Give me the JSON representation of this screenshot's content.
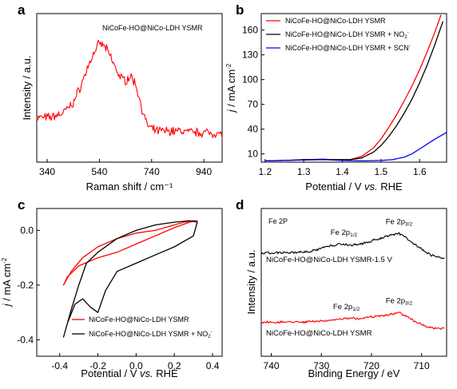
{
  "chart_data": [
    {
      "type": "line",
      "panel_label": "a",
      "annotation": "NiCoFe-HO@NiCo-LDH YSMR",
      "xlabel": "Raman shift / cm⁻¹",
      "ylabel": "Intensity / a.u.",
      "xlim": [
        300,
        1010
      ],
      "xticks": [
        "340",
        "540",
        "740",
        "940"
      ],
      "xtick_values": [
        340,
        540,
        740,
        940
      ],
      "color": "#ff0000",
      "noisy": true,
      "series": [
        {
          "x": [
            300,
            350,
            400,
            440,
            470,
            500,
            520,
            540,
            560,
            580,
            600,
            620,
            640,
            660,
            680,
            700,
            720,
            740,
            760,
            800,
            850,
            900,
            950,
            1010
          ],
          "y": [
            0.3,
            0.3,
            0.33,
            0.4,
            0.52,
            0.66,
            0.74,
            0.8,
            0.78,
            0.72,
            0.64,
            0.57,
            0.55,
            0.58,
            0.52,
            0.38,
            0.26,
            0.22,
            0.21,
            0.21,
            0.21,
            0.2,
            0.2,
            0.19
          ]
        }
      ]
    },
    {
      "type": "line",
      "panel_label": "b",
      "xlabel": "Potential / V vs. RHE",
      "ylabel": "j / mA cm⁻²",
      "xlim": [
        1.19,
        1.67
      ],
      "ylim": [
        0,
        180
      ],
      "xticks": [
        "1.2",
        "1.3",
        "1.4",
        "1.5",
        "1.6"
      ],
      "xtick_values": [
        1.2,
        1.3,
        1.4,
        1.5,
        1.6
      ],
      "yticks": [
        "10",
        "40",
        "70",
        "100",
        "130",
        "160"
      ],
      "ytick_values": [
        10,
        40,
        70,
        100,
        130,
        160
      ],
      "legend_placement": "top-left",
      "series": [
        {
          "name": "NiCoFe-HO@NiCo-LDH YSMR",
          "color": "#ff0000",
          "x": [
            1.2,
            1.25,
            1.3,
            1.35,
            1.38,
            1.42,
            1.45,
            1.48,
            1.5,
            1.52,
            1.54,
            1.56,
            1.58,
            1.6,
            1.62,
            1.64,
            1.655
          ],
          "y": [
            1.5,
            2,
            3,
            3.5,
            3,
            3,
            7,
            17,
            28,
            42,
            57,
            74,
            92,
            112,
            134,
            158,
            178
          ]
        },
        {
          "name": "NiCoFe-HO@NiCo-LDH YSMR + NO₂⁻",
          "color": "#000000",
          "x": [
            1.2,
            1.25,
            1.3,
            1.35,
            1.38,
            1.42,
            1.45,
            1.48,
            1.5,
            1.52,
            1.54,
            1.56,
            1.58,
            1.6,
            1.62,
            1.64,
            1.66
          ],
          "y": [
            1.5,
            2,
            3,
            3.5,
            3,
            3,
            5,
            12,
            20,
            31,
            44,
            59,
            76,
            96,
            118,
            143,
            170
          ]
        },
        {
          "name": "NiCoFe-HO@NiCo-LDH YSMR + SCN⁻",
          "color": "#0000ff",
          "x": [
            1.2,
            1.25,
            1.3,
            1.35,
            1.4,
            1.45,
            1.5,
            1.53,
            1.56,
            1.58,
            1.6,
            1.62,
            1.64,
            1.67
          ],
          "y": [
            1.5,
            2,
            2.5,
            3,
            2,
            1.5,
            2,
            3,
            6,
            10,
            16,
            22,
            28,
            36
          ]
        }
      ]
    },
    {
      "type": "line",
      "panel_label": "c",
      "xlabel": "Potential / V vs. RHE",
      "ylabel": "j / mA cm⁻²",
      "xlim": [
        -0.52,
        0.45
      ],
      "ylim": [
        -0.46,
        0.08
      ],
      "xticks": [
        "-0.4",
        "-0.2",
        "0.0",
        "0.2",
        "0.4"
      ],
      "xtick_values": [
        -0.4,
        -0.2,
        0.0,
        0.2,
        0.4
      ],
      "yticks": [
        "-0.4",
        "-0.2",
        "0.0"
      ],
      "ytick_values": [
        -0.4,
        -0.2,
        0.0
      ],
      "legend_placement": "bottom-right",
      "series": [
        {
          "name": "NiCoFe-HO@NiCo-LDH YSMR",
          "color": "#ff0000",
          "x": [
            0.32,
            0.3,
            0.25,
            0.2,
            0.1,
            0.0,
            -0.1,
            -0.2,
            -0.28,
            -0.34,
            -0.38,
            -0.36,
            -0.3,
            -0.2,
            -0.1,
            0.0,
            0.1,
            0.2,
            0.28,
            0.32
          ],
          "y": [
            0.035,
            0.035,
            0.03,
            0.02,
            0.0,
            -0.01,
            -0.03,
            -0.06,
            -0.1,
            -0.15,
            -0.2,
            -0.17,
            -0.13,
            -0.1,
            -0.08,
            -0.05,
            -0.02,
            0.01,
            0.03,
            0.035
          ]
        },
        {
          "name": "NiCoFe-HO@NiCo-LDH YSMR + NO₂⁻",
          "color": "#000000",
          "x": [
            0.32,
            0.28,
            0.2,
            0.1,
            0.0,
            -0.1,
            -0.2,
            -0.26,
            -0.3,
            -0.34,
            -0.38,
            -0.36,
            -0.32,
            -0.28,
            -0.24,
            -0.2,
            -0.16,
            -0.1,
            0.0,
            0.1,
            0.2,
            0.3,
            0.32
          ],
          "y": [
            0.03,
            0.035,
            0.03,
            0.02,
            0.0,
            -0.03,
            -0.08,
            -0.12,
            -0.2,
            -0.29,
            -0.39,
            -0.34,
            -0.27,
            -0.25,
            -0.28,
            -0.3,
            -0.22,
            -0.15,
            -0.12,
            -0.09,
            -0.06,
            -0.02,
            0.03
          ]
        }
      ]
    },
    {
      "type": "line",
      "panel_label": "d",
      "annotation": "Fe 2P",
      "xlabel": "Binding Energy / eV",
      "ylabel": "Intensity / a.u.",
      "xlim": [
        742,
        705
      ],
      "xticks": [
        "740",
        "730",
        "720",
        "710"
      ],
      "xtick_values": [
        740,
        730,
        720,
        710
      ],
      "noisy": true,
      "series": [
        {
          "name": "NiCoFe-HO@NiCo-LDH YSMR-1.5 V",
          "color": "#000000",
          "peak_labels": [
            {
              "base": "Fe 2p",
              "sub": "1/2",
              "x": 725.5
            },
            {
              "base": "Fe 2p",
              "sub": "3/2",
              "x": 714.5
            }
          ],
          "x": [
            742,
            738,
            735,
            732,
            730,
            728,
            726,
            724,
            722,
            720,
            718,
            716,
            714.5,
            713,
            711,
            709,
            707,
            705.5
          ],
          "y": [
            0.7,
            0.7,
            0.705,
            0.71,
            0.73,
            0.75,
            0.76,
            0.75,
            0.76,
            0.78,
            0.8,
            0.82,
            0.83,
            0.8,
            0.75,
            0.7,
            0.67,
            0.66
          ]
        },
        {
          "name": "NiCoFe-HO@NiCo-LDH YSMR",
          "color": "#ff0000",
          "peak_labels": [
            {
              "base": "Fe 2p",
              "sub": "1/2",
              "x": 725
            },
            {
              "base": "Fe 2p",
              "sub": "3/2",
              "x": 714.5
            }
          ],
          "x": [
            742,
            738,
            734,
            731,
            729,
            727,
            725,
            723,
            721,
            719,
            717,
            715,
            714.5,
            713,
            711,
            709,
            707,
            705.5
          ],
          "y": [
            0.23,
            0.23,
            0.232,
            0.235,
            0.24,
            0.25,
            0.255,
            0.255,
            0.26,
            0.27,
            0.28,
            0.29,
            0.295,
            0.27,
            0.23,
            0.2,
            0.19,
            0.185
          ]
        }
      ]
    }
  ]
}
